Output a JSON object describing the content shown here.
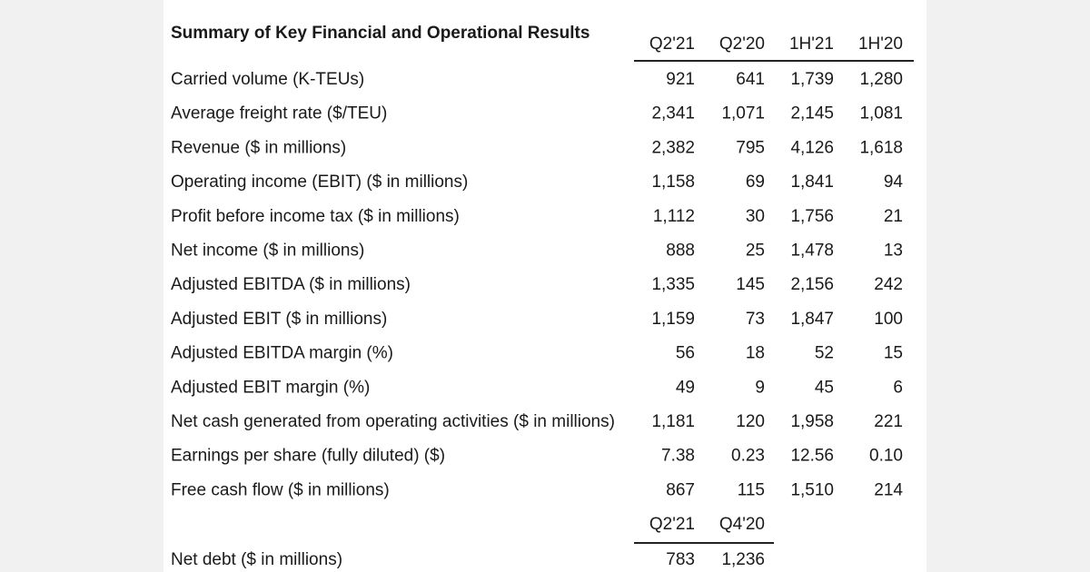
{
  "title": "Summary of Key Financial and Operational Results",
  "header": [
    "Q2'21",
    "Q2'20",
    "1H'21",
    "1H'20"
  ],
  "rows": [
    [
      "Carried volume (K-TEUs)",
      "921",
      "641",
      "1,739",
      "1,280"
    ],
    [
      "Average freight rate ($/TEU)",
      "2,341",
      "1,071",
      "2,145",
      "1,081"
    ],
    [
      "Revenue ($ in millions)",
      "2,382",
      "795",
      "4,126",
      "1,618"
    ],
    [
      "Operating income (EBIT) ($ in millions)",
      "1,158",
      "69",
      "1,841",
      "94"
    ],
    [
      "Profit before income tax ($ in millions)",
      "1,112",
      "30",
      "1,756",
      "21"
    ],
    [
      "Net income ($ in millions)",
      "888",
      "25",
      "1,478",
      "13"
    ],
    [
      "Adjusted EBITDA ($ in millions)",
      "1,335",
      "145",
      "2,156",
      "242"
    ],
    [
      "Adjusted EBIT ($ in millions)",
      "1,159",
      "73",
      "1,847",
      "100"
    ],
    [
      "Adjusted EBITDA margin (%)",
      "56",
      "18",
      "52",
      "15"
    ],
    [
      "Adjusted EBIT margin (%)",
      "49",
      "9",
      "45",
      "6"
    ],
    [
      "Net cash generated from operating activities ($ in millions)",
      "1,181",
      "120",
      "1,958",
      "221"
    ],
    [
      "Earnings per share (fully diluted) ($)",
      "7.38",
      "0.23",
      "12.56",
      "0.10"
    ],
    [
      "Free cash flow ($ in millions)",
      "867",
      "115",
      "1,510",
      "214"
    ]
  ],
  "section2": {
    "header": [
      "Q2'21",
      "Q4'20"
    ],
    "rows": [
      [
        "Net debt ($ in millions)",
        "783",
        "1,236"
      ]
    ]
  }
}
